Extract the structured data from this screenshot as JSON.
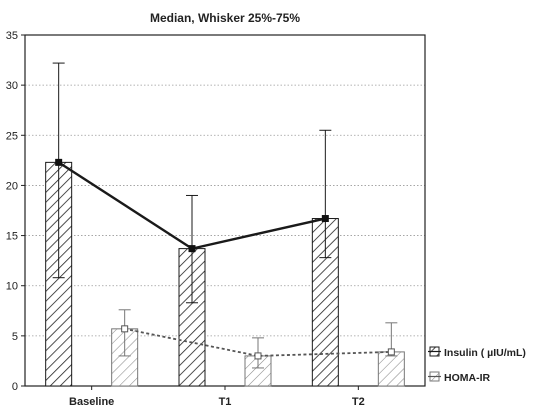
{
  "chart_data": {
    "type": "bar",
    "title": "Median, Whisker 25%-75%",
    "categories": [
      "Baseline",
      "T1",
      "T2"
    ],
    "ylim": [
      0,
      35
    ],
    "yticks": [
      0,
      5,
      10,
      15,
      20,
      25,
      30,
      35
    ],
    "grid": true,
    "legend_position": "bottom-right",
    "series": [
      {
        "name": "Insulin ( µIU/mL)",
        "values": [
          22.3,
          13.7,
          16.7
        ],
        "whisker_low": [
          10.8,
          8.3,
          12.8
        ],
        "whisker_high": [
          32.2,
          19.0,
          25.5
        ],
        "line_style": "solid",
        "color": "#1a1a1a"
      },
      {
        "name": "HOMA-IR",
        "values": [
          5.7,
          3.0,
          3.4
        ],
        "whisker_low": [
          3.0,
          1.8,
          3.0
        ],
        "whisker_high": [
          7.6,
          4.8,
          6.3
        ],
        "line_style": "dashed",
        "color": "#555555"
      }
    ]
  }
}
